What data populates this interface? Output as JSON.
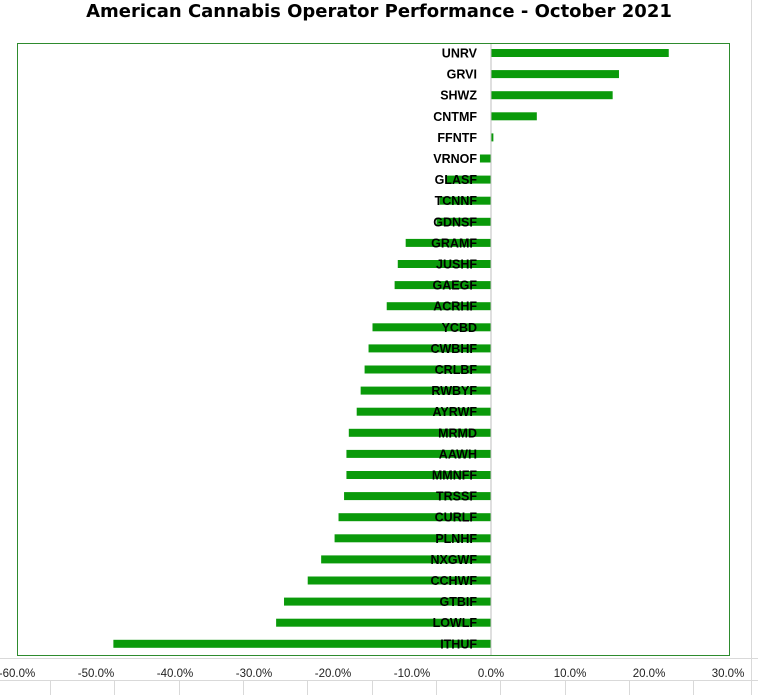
{
  "chart_data": {
    "type": "bar",
    "orientation": "horizontal",
    "title": "American Cannabis Operator Performance - October 2021",
    "xlabel": "",
    "ylabel": "",
    "xlim": [
      -60,
      30
    ],
    "x_ticks": [
      -60,
      -50,
      -40,
      -30,
      -20,
      -10,
      0,
      10,
      20,
      30
    ],
    "x_tick_labels": [
      "-60.0%",
      "-50.0%",
      "-40.0%",
      "-30.0%",
      "-20.0%",
      "-10.0%",
      "0.0%",
      "10.0%",
      "20.0%",
      "30.0%"
    ],
    "categories": [
      "UNRV",
      "GRVI",
      "SHWZ",
      "CNTMF",
      "FFNTF",
      "VRNOF",
      "GLASF",
      "TCNNF",
      "GDNSF",
      "GRAMF",
      "JUSHF",
      "GAEGF",
      "ACRHF",
      "YCBD",
      "CWBHF",
      "CRLBF",
      "RWBYF",
      "AYRWF",
      "MRMD",
      "AAWH",
      "MMNFF",
      "TRSSF",
      "CURLF",
      "PLNHF",
      "NXGWF",
      "CCHWF",
      "GTBIF",
      "LOWLF",
      "ITHUF"
    ],
    "values": [
      22.5,
      16.2,
      15.4,
      5.8,
      0.3,
      -1.4,
      -5.8,
      -6.5,
      -6.9,
      -10.8,
      -11.8,
      -12.2,
      -13.2,
      -15.0,
      -15.5,
      -16.0,
      -16.5,
      -17.0,
      -18.0,
      -18.3,
      -18.3,
      -18.6,
      -19.3,
      -19.8,
      -21.5,
      -23.2,
      -26.2,
      -27.2,
      -47.8
    ],
    "legend": "none",
    "grid": false,
    "colors": {
      "bar": "#0a9a0a",
      "plot_border": "#2e8b2e",
      "axis": "#bfbfbf",
      "sheet_grid": "#d9d9d9"
    }
  }
}
